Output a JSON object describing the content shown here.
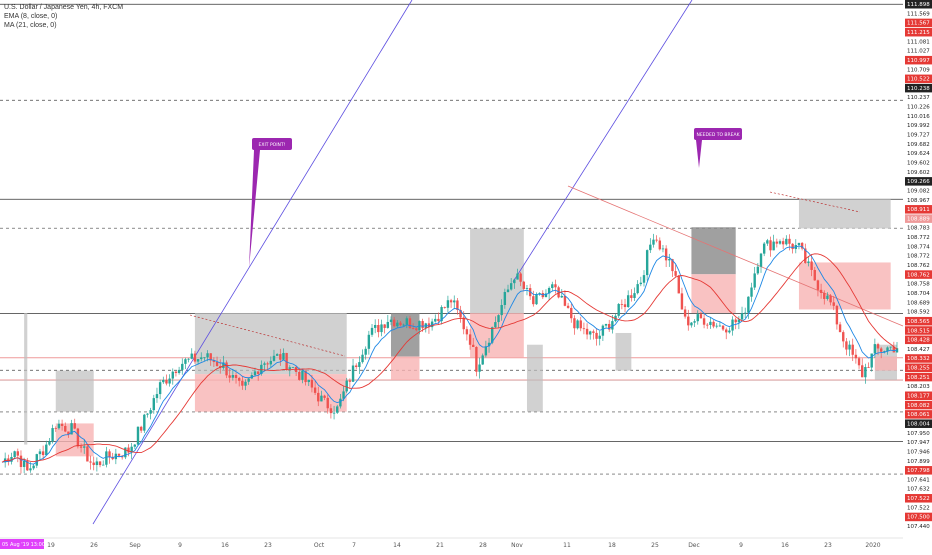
{
  "legend": {
    "symbol": "U.S. Dollar / Japanese Yen, 4h, FXCM",
    "ema": "EMA (8, close, 0)",
    "ma": "MA (21, close, 0)"
  },
  "colors": {
    "bull": "#26a69a",
    "bear": "#ef5350",
    "ema": "#1e88e5",
    "ma": "#e53935",
    "trendline": "#5c4de0",
    "downtrend": "#e57373",
    "grey_zone": "#bdbdbd",
    "pink_zone": "#f8b3b3",
    "note_bg": "#9c27b0",
    "price_red": "#e53935",
    "date_highlight": "#e040fb"
  },
  "annotations": [
    "EXIT POINT!",
    "NEEDED TO BREAK"
  ],
  "date_highlight": "05 Aug '19  13:00",
  "chart_data": {
    "type": "candlestick",
    "title": "U.S. Dollar / Japanese Yen, 4h, FXCM",
    "ylim": [
      107.44,
      111.9
    ],
    "x_ticks": [
      "19",
      "26",
      "Sep",
      "9",
      "16",
      "23",
      "Oct",
      "7",
      "14",
      "21",
      "28",
      "Nov",
      "11",
      "18",
      "25",
      "Dec",
      "9",
      "16",
      "23",
      "2020"
    ],
    "y_ticks": [
      {
        "label": "111.898",
        "style": "dark"
      },
      {
        "label": "111.569",
        "style": "plain"
      },
      {
        "label": "111.567",
        "style": "red"
      },
      {
        "label": "111.215",
        "style": "red"
      },
      {
        "label": "111.081",
        "style": "plain"
      },
      {
        "label": "111.027",
        "style": "plain"
      },
      {
        "label": "110.997",
        "style": "red"
      },
      {
        "label": "110.709",
        "style": "plain"
      },
      {
        "label": "110.522",
        "style": "red"
      },
      {
        "label": "110.238",
        "style": "dark"
      },
      {
        "label": "110.237",
        "style": "plain"
      },
      {
        "label": "110.226",
        "style": "plain"
      },
      {
        "label": "110.016",
        "style": "plain"
      },
      {
        "label": "109.992",
        "style": "plain"
      },
      {
        "label": "109.727",
        "style": "plain"
      },
      {
        "label": "109.682",
        "style": "plain"
      },
      {
        "label": "109.624",
        "style": "plain"
      },
      {
        "label": "109.602",
        "style": "plain"
      },
      {
        "label": "109.602",
        "style": "plain"
      },
      {
        "label": "109.266",
        "style": "dark"
      },
      {
        "label": "109.082",
        "style": "plain"
      },
      {
        "label": "108.967",
        "style": "plain"
      },
      {
        "label": "108.911",
        "style": "red"
      },
      {
        "label": "108.889",
        "style": "pink"
      },
      {
        "label": "108.783",
        "style": "plain"
      },
      {
        "label": "108.772",
        "style": "plain"
      },
      {
        "label": "108.774",
        "style": "plain"
      },
      {
        "label": "108.772",
        "style": "plain"
      },
      {
        "label": "108.762",
        "style": "plain"
      },
      {
        "label": "108.762",
        "style": "red"
      },
      {
        "label": "108.758",
        "style": "plain"
      },
      {
        "label": "108.704",
        "style": "plain"
      },
      {
        "label": "108.689",
        "style": "plain"
      },
      {
        "label": "108.592",
        "style": "plain"
      },
      {
        "label": "108.565",
        "style": "red"
      },
      {
        "label": "108.515",
        "style": "red"
      },
      {
        "label": "108.428",
        "style": "red"
      },
      {
        "label": "108.427",
        "style": "plain"
      },
      {
        "label": "108.332",
        "style": "red"
      },
      {
        "label": "108.255",
        "style": "red"
      },
      {
        "label": "108.251",
        "style": "red"
      },
      {
        "label": "108.203",
        "style": "plain"
      },
      {
        "label": "108.177",
        "style": "red"
      },
      {
        "label": "108.082",
        "style": "red"
      },
      {
        "label": "108.061",
        "style": "red"
      },
      {
        "label": "108.004",
        "style": "dark"
      },
      {
        "label": "107.950",
        "style": "plain"
      },
      {
        "label": "107.947",
        "style": "plain"
      },
      {
        "label": "107.946",
        "style": "plain"
      },
      {
        "label": "107.899",
        "style": "plain"
      },
      {
        "label": "107.798",
        "style": "red"
      },
      {
        "label": "107.641",
        "style": "plain"
      },
      {
        "label": "107.632",
        "style": "plain"
      },
      {
        "label": "107.522",
        "style": "red"
      },
      {
        "label": "107.522",
        "style": "plain"
      },
      {
        "label": "107.500",
        "style": "red"
      },
      {
        "label": "107.440",
        "style": "plain"
      }
    ],
    "price_levels_solid": [
      111.898,
      110.238,
      109.266,
      108.7,
      108.177
    ],
    "price_levels_dashed": [
      111.081,
      109.992,
      108.783,
      108.428,
      107.899
    ],
    "price_levels_red": [
      108.7,
      108.889
    ],
    "anchors": [
      [
        0,
        108.0
      ],
      [
        4,
        108.1
      ],
      [
        8,
        107.92
      ],
      [
        14,
        108.15
      ],
      [
        17,
        108.33
      ],
      [
        22,
        108.28
      ],
      [
        26,
        108.08
      ],
      [
        29,
        107.97
      ],
      [
        34,
        108.05
      ],
      [
        40,
        108.1
      ],
      [
        44,
        108.3
      ],
      [
        50,
        108.65
      ],
      [
        56,
        108.84
      ],
      [
        64,
        108.9
      ],
      [
        70,
        108.82
      ],
      [
        76,
        108.6
      ],
      [
        82,
        108.85
      ],
      [
        88,
        108.9
      ],
      [
        94,
        108.75
      ],
      [
        102,
        108.5
      ],
      [
        106,
        108.45
      ],
      [
        112,
        108.85
      ],
      [
        116,
        109.08
      ],
      [
        122,
        109.22
      ],
      [
        130,
        109.18
      ],
      [
        136,
        109.2
      ],
      [
        142,
        109.38
      ],
      [
        148,
        109.05
      ],
      [
        150,
        108.82
      ],
      [
        156,
        109.2
      ],
      [
        162,
        109.6
      ],
      [
        168,
        109.35
      ],
      [
        174,
        109.48
      ],
      [
        182,
        109.15
      ],
      [
        188,
        109.05
      ],
      [
        194,
        109.25
      ],
      [
        202,
        109.55
      ],
      [
        206,
        109.95
      ],
      [
        212,
        109.65
      ],
      [
        216,
        109.2
      ],
      [
        222,
        109.22
      ],
      [
        228,
        109.15
      ],
      [
        234,
        109.22
      ],
      [
        240,
        109.82
      ],
      [
        246,
        109.9
      ],
      [
        252,
        109.82
      ],
      [
        256,
        109.6
      ],
      [
        262,
        109.35
      ],
      [
        266,
        109.05
      ],
      [
        272,
        108.75
      ],
      [
        276,
        108.95
      ],
      [
        282,
        108.98
      ]
    ],
    "ema_period": 8,
    "ma_period": 21
  }
}
